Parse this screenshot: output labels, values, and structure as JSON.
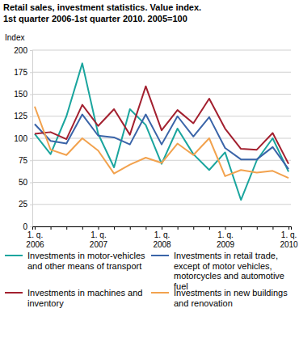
{
  "chart_data": {
    "type": "line",
    "title": "Retail sales, investment statistics. Value index.",
    "subtitle": "1st quarter 2006-1st quarter 2010. 2005=100",
    "y_label": "Index",
    "categories": [
      "1. q. 2006",
      null,
      null,
      null,
      "1. q. 2007",
      null,
      null,
      null,
      "1. q. 2008",
      null,
      null,
      null,
      "1. q. 2009",
      null,
      null,
      null,
      "1. q. 2010"
    ],
    "ylim": [
      0,
      200
    ],
    "yticks": [
      0,
      25,
      50,
      75,
      100,
      125,
      150,
      175,
      200
    ],
    "grid": true,
    "legend": "bottom",
    "series": [
      {
        "name": "Investments in motor-vehicles and other means of transport",
        "color": "#1aa59e",
        "values": [
          105,
          82,
          125,
          185,
          105,
          67,
          133,
          115,
          71,
          111,
          82,
          64,
          84,
          30,
          75,
          100,
          62
        ]
      },
      {
        "name": "Investments in retail trade, except of motor vehicles, motorcycles and automotive fuel",
        "color": "#3a64a8",
        "values": [
          116,
          97,
          94,
          127,
          103,
          101,
          93,
          127,
          93,
          125,
          102,
          124,
          89,
          76,
          76,
          90,
          65
        ]
      },
      {
        "name": "Investments in machines and inventory",
        "color": "#a3202f",
        "values": [
          105,
          107,
          99,
          138,
          114,
          133,
          104,
          159,
          109,
          132,
          117,
          145,
          111,
          88,
          87,
          106,
          71
        ]
      },
      {
        "name": "Investments in new buildings and renovation",
        "color": "#f2a24e",
        "values": [
          136,
          87,
          81,
          100,
          86,
          60,
          70,
          78,
          72,
          94,
          81,
          100,
          57,
          64,
          61,
          63,
          55
        ]
      }
    ]
  }
}
